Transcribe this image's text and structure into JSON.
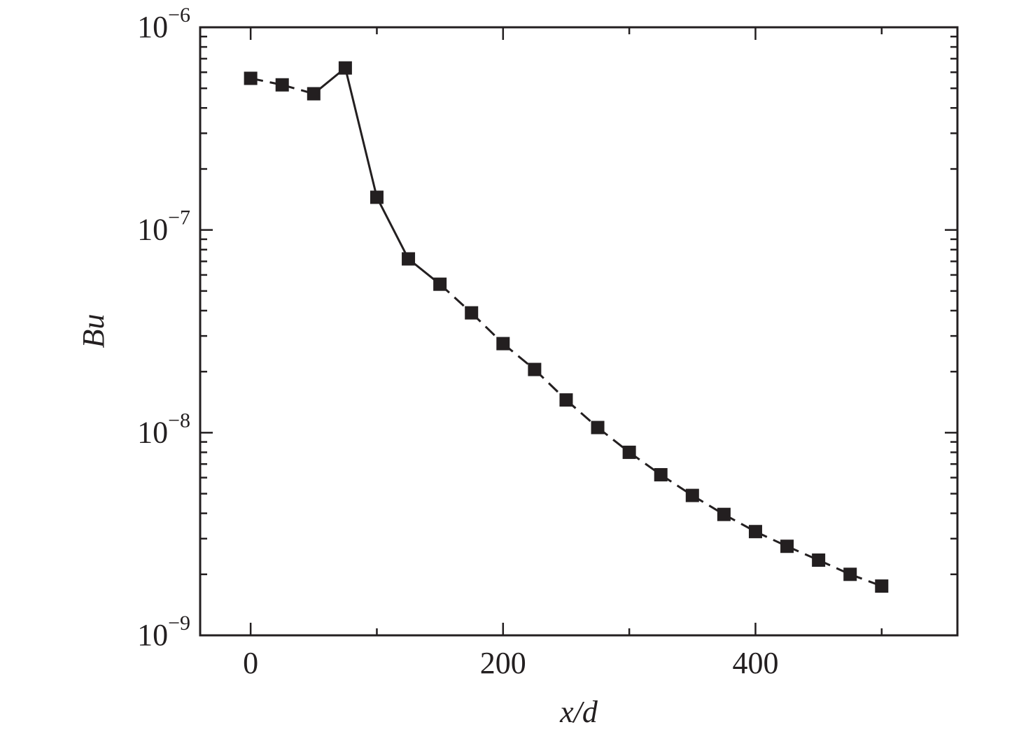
{
  "chart_data": {
    "type": "line",
    "title": "",
    "xlabel": "x/d",
    "ylabel": "Bu",
    "xlim": [
      -40,
      560
    ],
    "ylim": [
      1e-09,
      1e-06
    ],
    "yscale": "log",
    "grid": false,
    "legend": "none",
    "x_ticks": [
      0,
      200,
      400
    ],
    "x_tick_labels": [
      "0",
      "200",
      "400"
    ],
    "y_ticks": [
      1e-09,
      1e-08,
      1e-07,
      1e-06
    ],
    "y_tick_labels": [
      {
        "base": "10",
        "exp": "−9"
      },
      {
        "base": "10",
        "exp": "−8"
      },
      {
        "base": "10",
        "exp": "−7"
      },
      {
        "base": "10",
        "exp": "−6"
      }
    ],
    "colors": {
      "series": "#231f20"
    },
    "series": [
      {
        "marker": "square",
        "x": [
          0,
          25,
          50,
          75,
          100,
          125,
          150,
          175,
          200,
          225,
          250,
          275,
          300,
          325,
          350,
          375,
          400,
          425,
          450,
          475,
          500
        ],
        "y": [
          5.6e-07,
          5.2e-07,
          4.7e-07,
          6.3e-07,
          1.45e-07,
          7.2e-08,
          5.4e-08,
          3.9e-08,
          2.75e-08,
          2.05e-08,
          1.45e-08,
          1.06e-08,
          8e-09,
          6.2e-09,
          4.9e-09,
          3.95e-09,
          3.25e-09,
          2.75e-09,
          2.35e-09,
          2e-09,
          1.75e-09
        ],
        "segment_styles": [
          "dashed",
          "dashed",
          "solid",
          "solid",
          "solid",
          "solid",
          "dashed",
          "dashed",
          "dashed",
          "dashed",
          "dashed",
          "dashed",
          "dashed",
          "dashed",
          "dashed",
          "dashed",
          "dashed",
          "dashed",
          "dashed",
          "dashed"
        ]
      }
    ]
  }
}
